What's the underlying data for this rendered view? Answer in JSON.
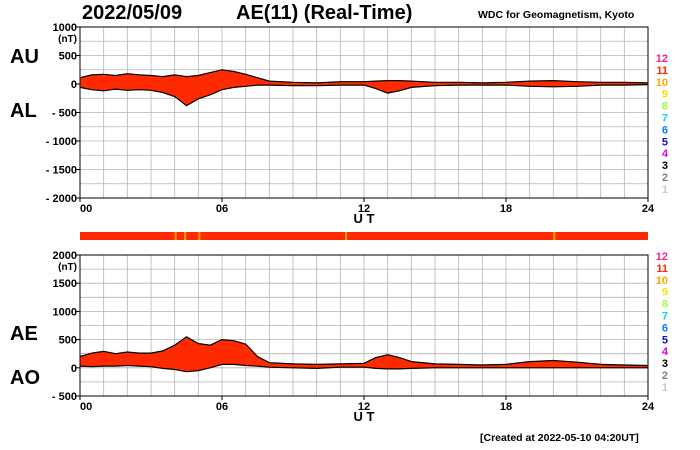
{
  "header": {
    "date": "2022/05/09",
    "title": "AE(11) (Real-Time)",
    "source": "WDC for Geomagnetism, Kyoto"
  },
  "footer": {
    "created": "[Created at 2022-05-10 04:20UT]"
  },
  "colors": {
    "fill": "#ff2a00",
    "outline": "#000000",
    "grid": "#b4b4b4"
  },
  "station_legend": {
    "items": [
      {
        "label": "12",
        "color": "#ff1f8f"
      },
      {
        "label": "11",
        "color": "#ff2a00"
      },
      {
        "label": "10",
        "color": "#ffa500"
      },
      {
        "label": "9",
        "color": "#ffe000"
      },
      {
        "label": "8",
        "color": "#a0ff40"
      },
      {
        "label": "7",
        "color": "#00e0e0"
      },
      {
        "label": "6",
        "color": "#0080ff"
      },
      {
        "label": "5",
        "color": "#1010c0"
      },
      {
        "label": "4",
        "color": "#e000e0"
      },
      {
        "label": "3",
        "color": "#000000"
      },
      {
        "label": "2",
        "color": "#808080"
      },
      {
        "label": "1",
        "color": "#c8c8c8"
      }
    ]
  },
  "chart_data": [
    {
      "type": "area",
      "name": "AU/AL",
      "y_unit": "(nT)",
      "ylim": [
        -2000,
        1000
      ],
      "y_ticks": [
        1000,
        500,
        0,
        -500,
        -1000,
        -1500,
        -2000
      ],
      "y_tick_labels": [
        "1000",
        "500",
        "0",
        "- 500",
        "- 1000",
        "- 1500",
        "- 2000"
      ],
      "x_ticks": [
        0,
        6,
        12,
        18,
        24
      ],
      "x_tick_labels": [
        "00",
        "06",
        "12",
        "18",
        "24"
      ],
      "xlabel": "U T",
      "xlim": [
        0,
        24
      ],
      "grid": true,
      "series_labels": [
        "AU",
        "AL"
      ],
      "x": [
        0,
        0.5,
        1,
        1.5,
        2,
        2.5,
        3,
        3.5,
        4,
        4.5,
        5,
        5.5,
        6,
        6.5,
        7,
        7.5,
        8,
        9,
        10,
        11,
        12,
        12.5,
        13,
        13.5,
        14,
        15,
        16,
        17,
        18,
        19,
        20,
        21,
        22,
        23,
        24
      ],
      "upper": [
        110,
        160,
        170,
        150,
        180,
        160,
        150,
        130,
        160,
        130,
        150,
        200,
        250,
        220,
        170,
        110,
        50,
        30,
        20,
        40,
        40,
        50,
        60,
        60,
        50,
        30,
        30,
        20,
        30,
        50,
        60,
        40,
        30,
        30,
        20
      ],
      "lower": [
        -60,
        -100,
        -120,
        -90,
        -110,
        -100,
        -110,
        -150,
        -220,
        -380,
        -260,
        -190,
        -100,
        -60,
        -40,
        -20,
        -20,
        -30,
        -30,
        -20,
        -20,
        -80,
        -160,
        -120,
        -60,
        -30,
        -20,
        -20,
        -20,
        -40,
        -50,
        -40,
        -20,
        -20,
        -10
      ]
    },
    {
      "type": "area",
      "name": "AE/AO",
      "y_unit": "(nT)",
      "ylim": [
        -500,
        2000
      ],
      "y_ticks": [
        2000,
        1500,
        1000,
        500,
        0,
        -500
      ],
      "y_tick_labels": [
        "2000",
        "1500",
        "1000",
        "500",
        "0",
        "- 500"
      ],
      "x_ticks": [
        0,
        6,
        12,
        18,
        24
      ],
      "x_tick_labels": [
        "00",
        "06",
        "12",
        "18",
        "24"
      ],
      "xlabel": "U T",
      "xlim": [
        0,
        24
      ],
      "grid": true,
      "series_labels": [
        "AE",
        "AO"
      ],
      "x": [
        0,
        0.5,
        1,
        1.5,
        2,
        2.5,
        3,
        3.5,
        4,
        4.5,
        5,
        5.5,
        6,
        6.5,
        7,
        7.5,
        8,
        9,
        10,
        11,
        12,
        12.5,
        13,
        13.5,
        14,
        15,
        16,
        17,
        18,
        19,
        20,
        21,
        22,
        23,
        24
      ],
      "upper": [
        200,
        260,
        290,
        250,
        280,
        260,
        260,
        300,
        400,
        550,
        430,
        400,
        500,
        480,
        420,
        200,
        90,
        70,
        60,
        70,
        80,
        180,
        230,
        180,
        110,
        70,
        60,
        50,
        60,
        110,
        130,
        100,
        60,
        50,
        40
      ],
      "lower": [
        30,
        20,
        30,
        30,
        40,
        30,
        20,
        -10,
        -30,
        -70,
        -50,
        0,
        60,
        60,
        40,
        30,
        10,
        0,
        -10,
        10,
        10,
        -10,
        -20,
        -20,
        -10,
        0,
        0,
        0,
        0,
        0,
        0,
        0,
        0,
        0,
        0
      ]
    }
  ]
}
